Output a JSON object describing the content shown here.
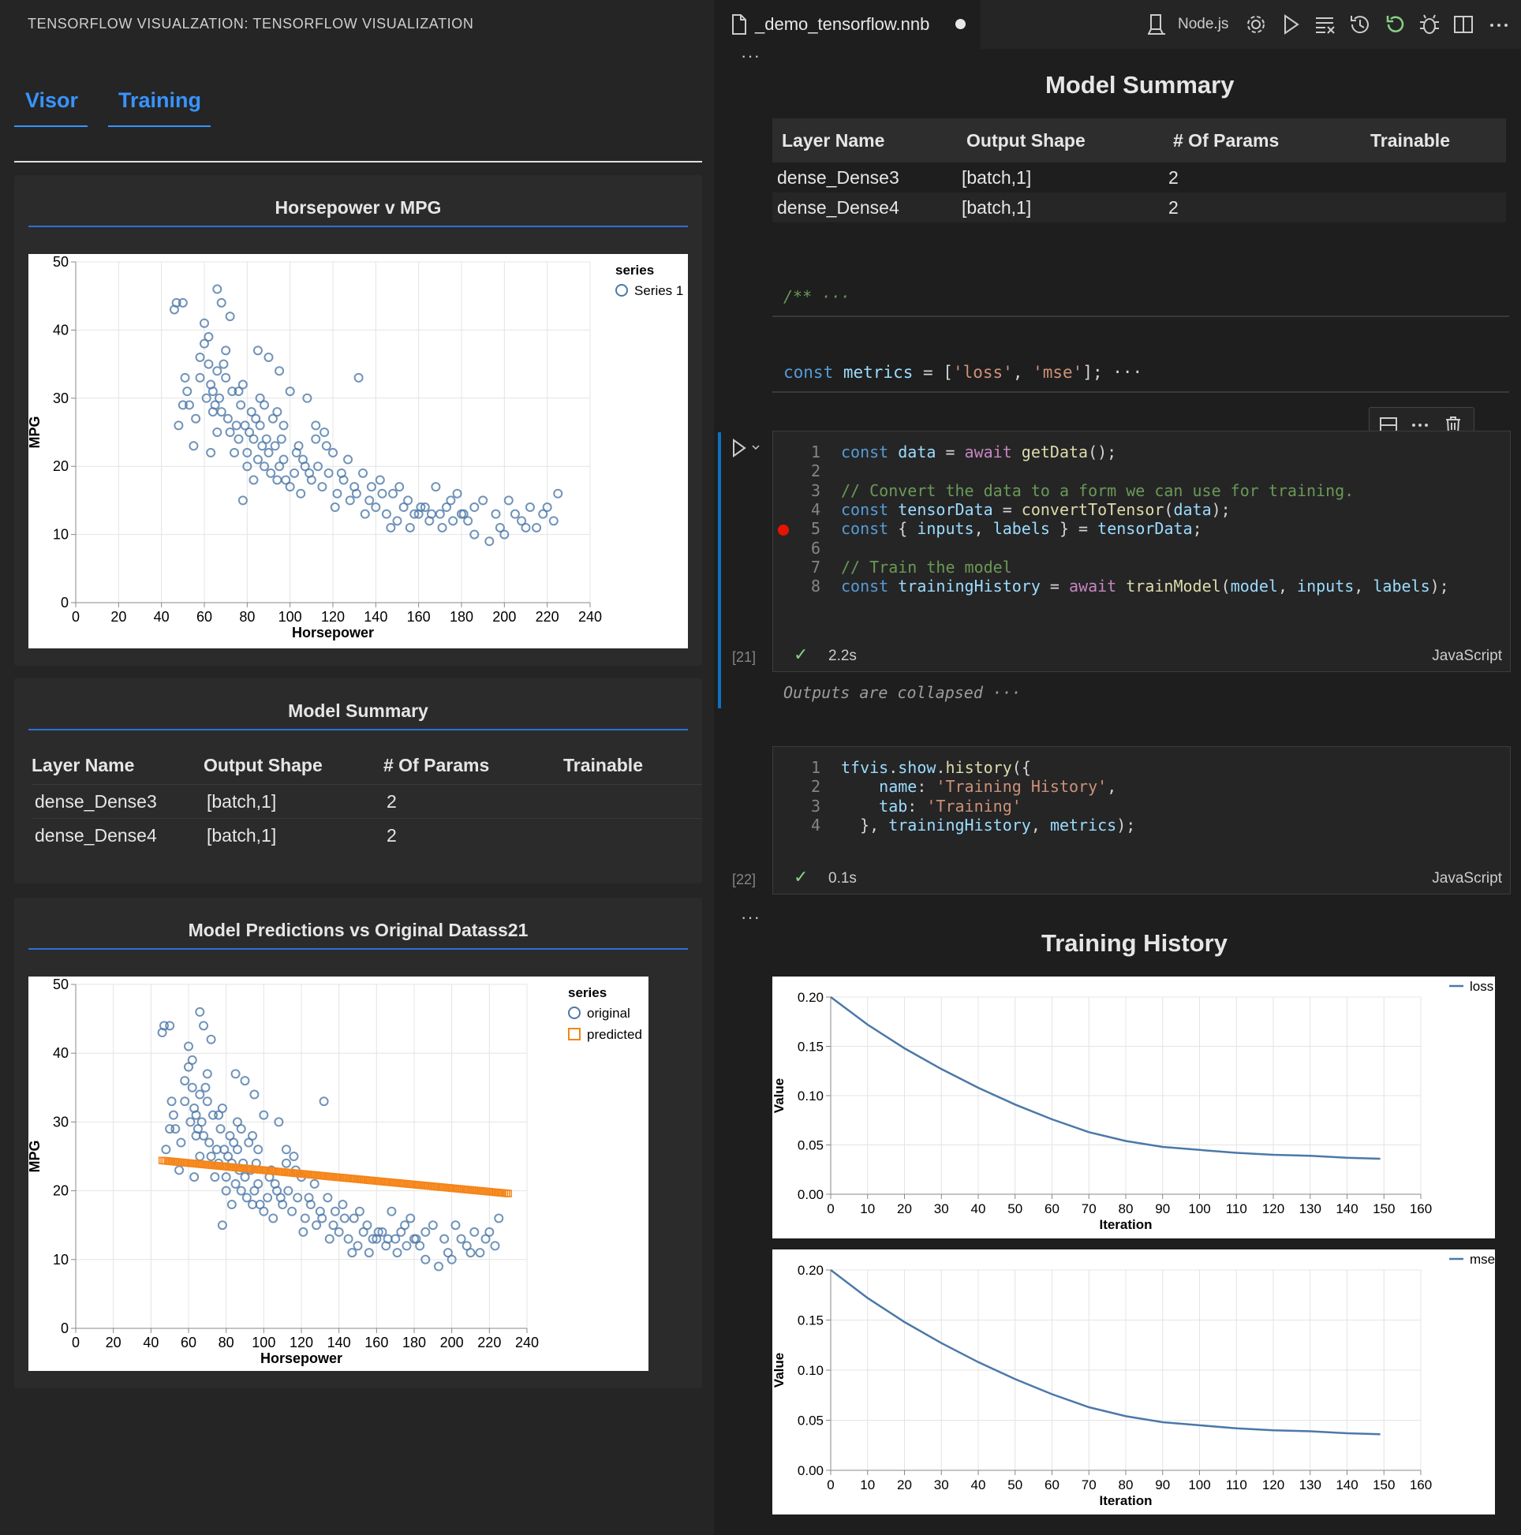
{
  "left": {
    "title": "TENSORFLOW VISUALZATION: TENSORFLOW VISUALIZATION",
    "tabs": [
      {
        "label": "Visor"
      },
      {
        "label": "Training"
      }
    ],
    "cards": {
      "hp_mpg": {
        "title": "Horsepower v MPG"
      },
      "summary": {
        "title": "Model Summary"
      },
      "predictions": {
        "title": "Model Predictions vs Original Datass21"
      }
    },
    "summary_table": {
      "headers": [
        "Layer Name",
        "Output Shape",
        "# Of Params",
        "Trainable"
      ],
      "rows": [
        [
          "dense_Dense3",
          "[batch,1]",
          "2",
          ""
        ],
        [
          "dense_Dense4",
          "[batch,1]",
          "2",
          ""
        ]
      ]
    }
  },
  "editor": {
    "file_name": "_demo_tensorflow.nnb",
    "kernel": "Node.js",
    "icons": [
      "file-icon",
      "kernel-icon",
      "gear-icon",
      "run-all-icon",
      "clear-outputs-icon",
      "history-icon",
      "restart-icon",
      "debug-icon",
      "split-editor-icon",
      "more-icon"
    ],
    "summary_title": "Model Summary",
    "summary_table": {
      "headers": [
        "Layer Name",
        "Output Shape",
        "# Of Params",
        "Trainable"
      ],
      "rows": [
        [
          "dense_Dense3",
          "[batch,1]",
          "2",
          ""
        ],
        [
          "dense_Dense4",
          "[batch,1]",
          "2",
          ""
        ]
      ]
    },
    "collapsed_comment": "/** ···",
    "metrics_cell": {
      "prefix": "const ",
      "var": "metrics",
      "mid": " = [",
      "s1": "'loss'",
      "comma": ", ",
      "s2": "'mse'",
      "end": "]; ···"
    },
    "cell21": {
      "exec": "[21]",
      "time": "2.2s",
      "language": "JavaScript",
      "outputs_collapsed": "Outputs are collapsed ···"
    },
    "cell22": {
      "exec": "[22]",
      "time": "0.1s",
      "language": "JavaScript"
    },
    "history_title": "Training History"
  },
  "chart_data": [
    {
      "type": "scatter",
      "title": "Horsepower v MPG",
      "xlabel": "Horsepower",
      "ylabel": "MPG",
      "xlim": [
        0,
        240
      ],
      "ylim": [
        0,
        50
      ],
      "xticks": [
        "0",
        "20",
        "40",
        "60",
        "80",
        "100",
        "120",
        "140",
        "160",
        "180",
        "200",
        "220",
        "240"
      ],
      "yticks": [
        "0",
        "10",
        "20",
        "30",
        "40",
        "50"
      ],
      "legend": {
        "title": "series",
        "entries": [
          "Series 1"
        ],
        "position": "top-right"
      },
      "series": [
        {
          "name": "Series 1",
          "color": "#4c78a8",
          "points": [
            [
              46,
              43
            ],
            [
              47,
              44
            ],
            [
              50,
              44
            ],
            [
              48,
              26
            ],
            [
              50,
              29
            ],
            [
              53,
              29
            ],
            [
              51,
              33
            ],
            [
              52,
              31
            ],
            [
              55,
              23
            ],
            [
              58,
              36
            ],
            [
              60,
              38
            ],
            [
              62,
              35
            ],
            [
              63,
              32
            ],
            [
              64,
              31
            ],
            [
              65,
              29
            ],
            [
              66,
              34
            ],
            [
              67,
              30
            ],
            [
              68,
              28
            ],
            [
              69,
              35
            ],
            [
              70,
              33
            ],
            [
              71,
              27
            ],
            [
              72,
              25
            ],
            [
              73,
              31
            ],
            [
              74,
              22
            ],
            [
              75,
              26
            ],
            [
              76,
              24
            ],
            [
              77,
              29
            ],
            [
              78,
              32
            ],
            [
              79,
              26
            ],
            [
              80,
              22
            ],
            [
              81,
              25
            ],
            [
              82,
              28
            ],
            [
              83,
              24
            ],
            [
              84,
              27
            ],
            [
              85,
              21
            ],
            [
              86,
              26
            ],
            [
              87,
              23
            ],
            [
              88,
              20
            ],
            [
              89,
              24
            ],
            [
              90,
              22
            ],
            [
              91,
              19
            ],
            [
              92,
              27
            ],
            [
              93,
              23
            ],
            [
              94,
              18
            ],
            [
              95,
              20
            ],
            [
              96,
              24
            ],
            [
              97,
              21
            ],
            [
              98,
              18
            ],
            [
              100,
              17
            ],
            [
              102,
              19
            ],
            [
              104,
              23
            ],
            [
              105,
              16
            ],
            [
              107,
              20
            ],
            [
              110,
              18
            ],
            [
              112,
              24
            ],
            [
              115,
              17
            ],
            [
              118,
              19
            ],
            [
              120,
              22
            ],
            [
              122,
              16
            ],
            [
              125,
              18
            ],
            [
              128,
              15
            ],
            [
              130,
              17
            ],
            [
              132,
              33
            ],
            [
              135,
              13
            ],
            [
              137,
              15
            ],
            [
              140,
              14
            ],
            [
              142,
              18
            ],
            [
              145,
              13
            ],
            [
              148,
              16
            ],
            [
              150,
              12
            ],
            [
              153,
              14
            ],
            [
              155,
              15
            ],
            [
              158,
              13
            ],
            [
              160,
              13
            ],
            [
              163,
              14
            ],
            [
              165,
              12
            ],
            [
              168,
              17
            ],
            [
              170,
              13
            ],
            [
              173,
              14
            ],
            [
              175,
              15
            ],
            [
              178,
              16
            ],
            [
              180,
              13
            ],
            [
              183,
              12
            ],
            [
              186,
              14
            ],
            [
              190,
              15
            ],
            [
              193,
              9
            ],
            [
              196,
              13
            ],
            [
              198,
              11
            ],
            [
              200,
              10
            ],
            [
              205,
              13
            ],
            [
              210,
              11
            ],
            [
              212,
              14
            ],
            [
              215,
              11
            ],
            [
              218,
              13
            ],
            [
              220,
              14
            ],
            [
              223,
              12
            ],
            [
              225,
              16
            ],
            [
              60,
              41
            ],
            [
              62,
              39
            ],
            [
              66,
              46
            ],
            [
              68,
              44
            ],
            [
              72,
              42
            ],
            [
              58,
              33
            ],
            [
              61,
              30
            ],
            [
              64,
              28
            ],
            [
              85,
              37
            ],
            [
              90,
              36
            ],
            [
              95,
              34
            ],
            [
              100,
              31
            ],
            [
              108,
              30
            ],
            [
              112,
              26
            ],
            [
              116,
              25
            ],
            [
              78,
              15
            ],
            [
              56,
              27
            ],
            [
              94,
              28
            ],
            [
              97,
              26
            ],
            [
              103,
              22
            ],
            [
              86,
              30
            ],
            [
              88,
              29
            ],
            [
              83,
              18
            ],
            [
              80,
              20
            ],
            [
              76,
              31
            ],
            [
              70,
              37
            ],
            [
              66,
              25
            ],
            [
              63,
              22
            ],
            [
              106,
              21
            ],
            [
              109,
              19
            ],
            [
              113,
              20
            ],
            [
              117,
              23
            ],
            [
              121,
              14
            ],
            [
              124,
              19
            ],
            [
              127,
              21
            ],
            [
              131,
              16
            ],
            [
              134,
              19
            ],
            [
              138,
              17
            ],
            [
              143,
              16
            ],
            [
              147,
              11
            ],
            [
              151,
              17
            ],
            [
              156,
              11
            ],
            [
              161,
              14
            ],
            [
              166,
              13
            ],
            [
              171,
              11
            ],
            [
              176,
              12
            ],
            [
              181,
              13
            ],
            [
              186,
              10
            ],
            [
              202,
              15
            ],
            [
              208,
              12
            ]
          ]
        }
      ]
    },
    {
      "type": "scatter",
      "title": "Model Predictions vs Original Datass21",
      "xlabel": "Horsepower",
      "ylabel": "MPG",
      "xlim": [
        0,
        240
      ],
      "ylim": [
        0,
        50
      ],
      "xticks": [
        "0",
        "20",
        "40",
        "60",
        "80",
        "100",
        "120",
        "140",
        "160",
        "180",
        "200",
        "220",
        "240"
      ],
      "yticks": [
        "0",
        "10",
        "20",
        "30",
        "40",
        "50"
      ],
      "legend": {
        "title": "series",
        "entries": [
          "original",
          "predicted"
        ],
        "position": "top-right"
      },
      "series": [
        {
          "name": "original",
          "color": "#4c78a8",
          "points": "same as chart 1"
        },
        {
          "name": "predicted",
          "color": "#f58518",
          "line": [
            [
              46,
              24.4
            ],
            [
              230,
              19.6
            ]
          ]
        }
      ]
    },
    {
      "type": "line",
      "xlabel": "Iteration",
      "ylabel": "Value",
      "xlim": [
        0,
        160
      ],
      "ylim": [
        0,
        0.2
      ],
      "xticks": [
        "0",
        "10",
        "20",
        "30",
        "40",
        "50",
        "60",
        "70",
        "80",
        "90",
        "100",
        "110",
        "120",
        "130",
        "140",
        "150",
        "160"
      ],
      "yticks": [
        "0.00",
        "0.05",
        "0.10",
        "0.15",
        "0.20"
      ],
      "legend": {
        "entries": [
          "loss"
        ],
        "position": "top-right"
      },
      "series": [
        {
          "name": "loss",
          "color": "#4c78a8",
          "values": [
            [
              0,
              0.2
            ],
            [
              10,
              0.172
            ],
            [
              20,
              0.148
            ],
            [
              30,
              0.127
            ],
            [
              40,
              0.108
            ],
            [
              50,
              0.091
            ],
            [
              60,
              0.076
            ],
            [
              70,
              0.063
            ],
            [
              80,
              0.054
            ],
            [
              90,
              0.048
            ],
            [
              100,
              0.045
            ],
            [
              110,
              0.042
            ],
            [
              120,
              0.04
            ],
            [
              130,
              0.039
            ],
            [
              140,
              0.037
            ],
            [
              149,
              0.036
            ]
          ]
        }
      ]
    },
    {
      "type": "line",
      "xlabel": "Iteration",
      "ylabel": "Value",
      "xlim": [
        0,
        160
      ],
      "ylim": [
        0,
        0.2
      ],
      "xticks": [
        "0",
        "10",
        "20",
        "30",
        "40",
        "50",
        "60",
        "70",
        "80",
        "90",
        "100",
        "110",
        "120",
        "130",
        "140",
        "150",
        "160"
      ],
      "yticks": [
        "0.00",
        "0.05",
        "0.10",
        "0.15",
        "0.20"
      ],
      "legend": {
        "entries": [
          "mse"
        ],
        "position": "top-right"
      },
      "series": [
        {
          "name": "mse",
          "color": "#4c78a8",
          "values": [
            [
              0,
              0.2
            ],
            [
              10,
              0.172
            ],
            [
              20,
              0.148
            ],
            [
              30,
              0.127
            ],
            [
              40,
              0.108
            ],
            [
              50,
              0.091
            ],
            [
              60,
              0.076
            ],
            [
              70,
              0.063
            ],
            [
              80,
              0.054
            ],
            [
              90,
              0.048
            ],
            [
              100,
              0.045
            ],
            [
              110,
              0.042
            ],
            [
              120,
              0.04
            ],
            [
              130,
              0.039
            ],
            [
              140,
              0.037
            ],
            [
              149,
              0.036
            ]
          ]
        }
      ]
    }
  ],
  "code": {
    "cell21": [
      [
        "kw:const ",
        "var:data",
        "pl: = ",
        "kw2:await ",
        "fn:getData",
        "pl:();"
      ],
      [],
      [
        "cm:// Convert the data to a form we can use for training."
      ],
      [
        "kw:const ",
        "var:tensorData",
        "pl: = ",
        "fn:convertToTensor",
        "pl:(",
        "var:data",
        "pl:);"
      ],
      [
        "kw:const ",
        "pl:{ ",
        "var:inputs",
        "pl:, ",
        "var:labels",
        "pl: } = ",
        "var:tensorData",
        "pl:;"
      ],
      [],
      [
        "cm:// Train the model"
      ],
      [
        "kw:const ",
        "var:trainingHistory",
        "pl: = ",
        "kw2:await ",
        "fn:trainModel",
        "pl:(",
        "var:model",
        "pl:, ",
        "var:inputs",
        "pl:, ",
        "var:labels",
        "pl:);"
      ]
    ],
    "cell22": [
      [
        "var:tfvis",
        "pl:.",
        "var:show",
        "pl:.",
        "fn:history",
        "pl:({"
      ],
      [
        "pl:    ",
        "var:name",
        "pl:: ",
        "str:'Training History'",
        "pl:,"
      ],
      [
        "pl:    ",
        "var:tab",
        "pl:: ",
        "str:'Training'"
      ],
      [
        "pl:  }, ",
        "var:trainingHistory",
        "pl:, ",
        "var:metrics",
        "pl:);"
      ]
    ]
  }
}
